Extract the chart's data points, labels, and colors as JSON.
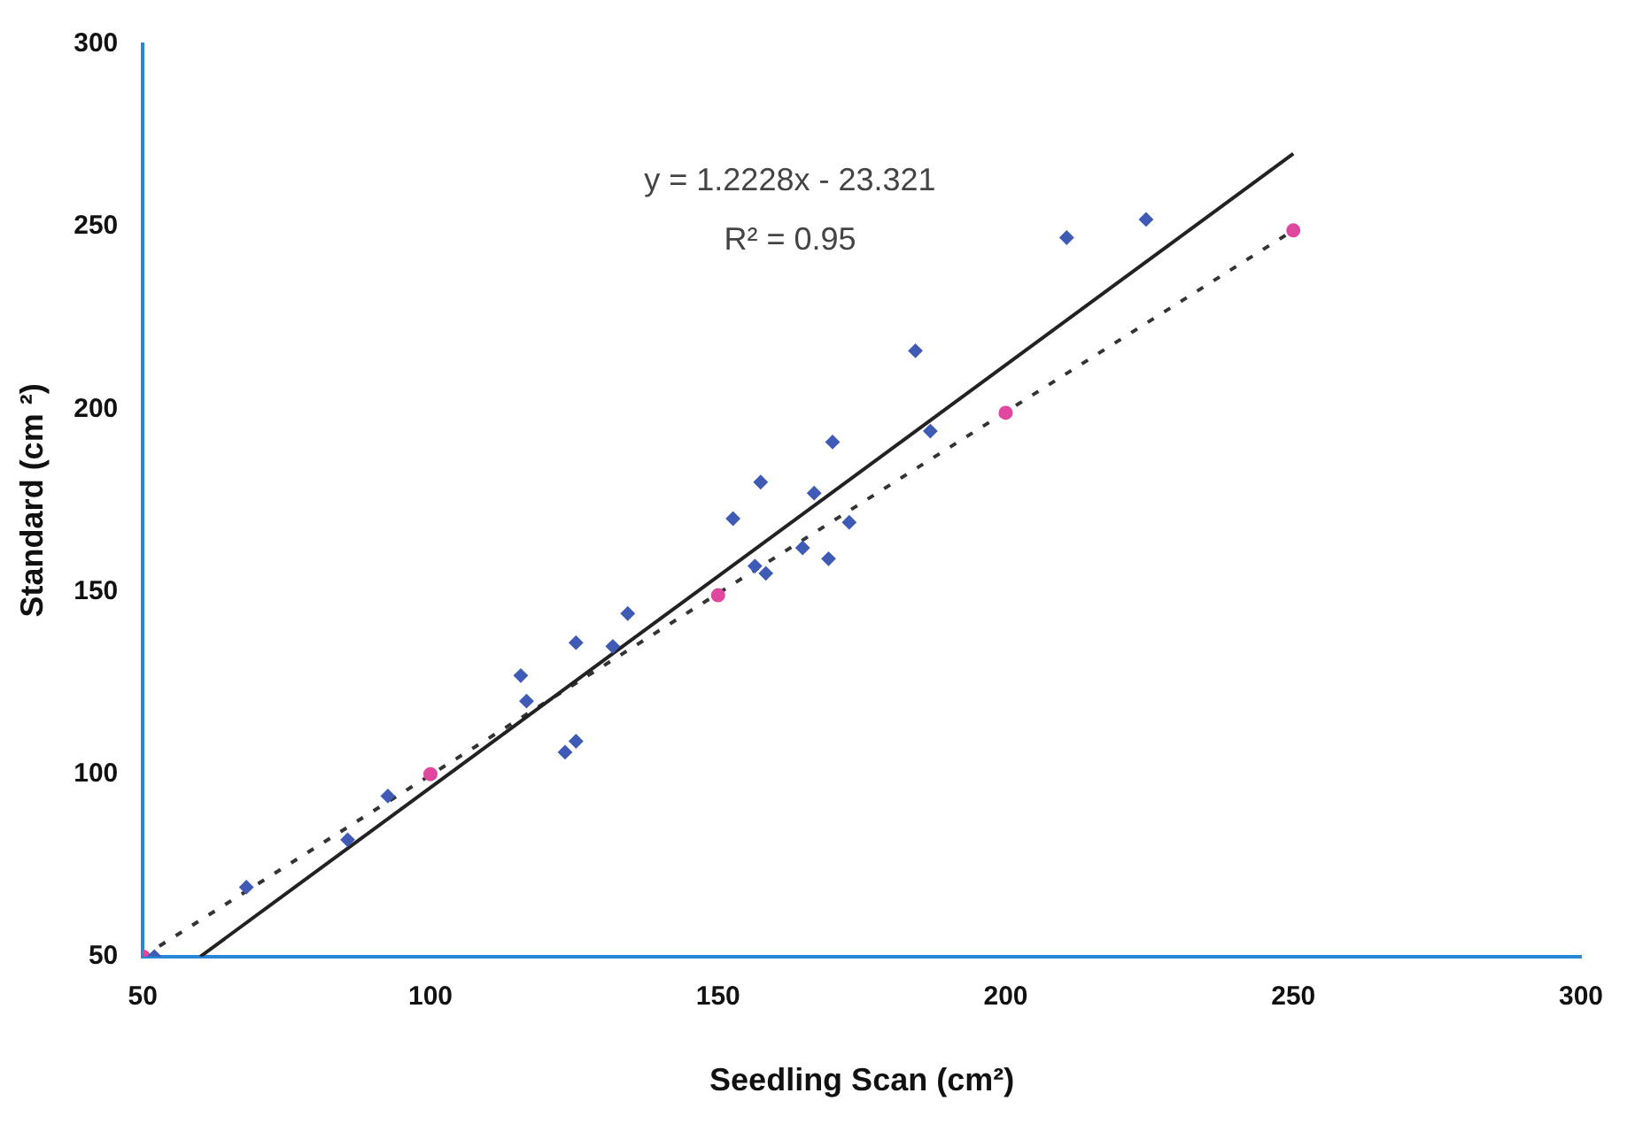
{
  "chart_data": {
    "type": "scatter",
    "xlabel": "Seedling Scan (cm²)",
    "ylabel": "Standard (cm ²)",
    "xlim": [
      50,
      300
    ],
    "xticks": [
      50,
      100,
      150,
      200,
      250,
      300
    ],
    "ylim": [
      50,
      300
    ],
    "yticks": [
      50,
      100,
      150,
      200,
      250,
      300
    ],
    "grid": false,
    "legend": false,
    "annotations": [
      "y = 1.2228x - 23.321",
      "R² = 0.95"
    ],
    "series": [
      {
        "marker": "diamond",
        "color": "#3f5bb5",
        "x": [
          52,
          68,
          85.6,
          92.6,
          116.7,
          115.7,
          123.4,
          125.3,
          125.3,
          131.7,
          134.3,
          152.6,
          156.4,
          158.3,
          164.7,
          169.2,
          172.8,
          157.4,
          166.7,
          169.9,
          184.3,
          186.9,
          210.6,
          224.4
        ],
        "values": [
          50,
          69,
          82,
          94,
          120,
          127,
          106,
          109,
          136,
          135,
          144,
          170,
          157,
          155,
          162,
          159,
          169,
          180,
          177,
          191,
          216,
          194,
          247,
          252
        ]
      },
      {
        "marker": "circle",
        "color": "#e0479e",
        "x": [
          50,
          100,
          150,
          200,
          250
        ],
        "values": [
          50,
          100,
          149,
          199,
          249
        ]
      },
      {
        "type": "line",
        "line_style": "solid",
        "color": "#222222",
        "x": [
          60,
          250
        ],
        "values": [
          50,
          270
        ]
      },
      {
        "type": "line",
        "line_style": "dotted",
        "color": "#333333",
        "x": [
          50,
          250
        ],
        "values": [
          50,
          249
        ]
      }
    ]
  }
}
